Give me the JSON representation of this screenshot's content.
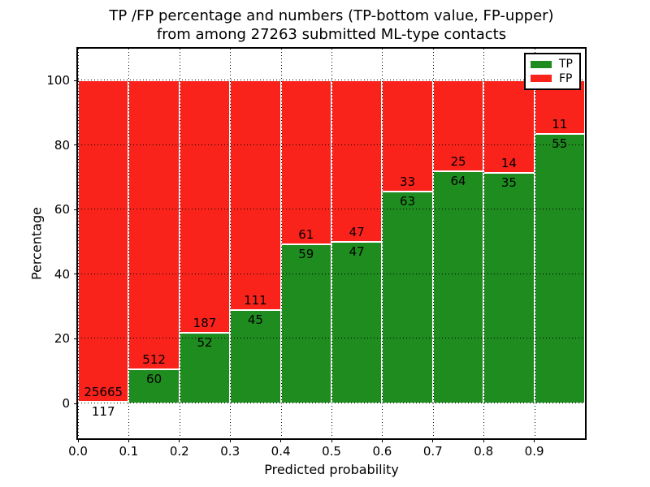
{
  "chart_data": {
    "type": "bar",
    "stacked": true,
    "percentage": true,
    "title_line1": "TP /FP percentage and numbers (TP-bottom value, FP-upper)",
    "title_line2": "from among 27263 submitted ML-type contacts",
    "xlabel": "Predicted probability",
    "ylabel": "Percentage",
    "x_tick_labels": [
      "0.0",
      "0.1",
      "0.2",
      "0.3",
      "0.4",
      "0.5",
      "0.6",
      "0.7",
      "0.8",
      "0.9"
    ],
    "y_ticks": [
      0,
      20,
      40,
      60,
      80,
      100
    ],
    "y_tick_labels": [
      "0",
      "20",
      "40",
      "60",
      "80",
      "100"
    ],
    "xlim": [
      0.0,
      1.0
    ],
    "ylim": [
      -10.8,
      109.8
    ],
    "bin_width": 0.1,
    "total_contacts": 27263,
    "series": [
      {
        "name": "TP",
        "color": "#1e8c1e",
        "values": [
          117,
          60,
          52,
          45,
          59,
          47,
          63,
          64,
          35,
          55
        ]
      },
      {
        "name": "FP",
        "color": "#fa231c",
        "values": [
          25665,
          512,
          187,
          111,
          61,
          47,
          33,
          25,
          14,
          11
        ]
      }
    ],
    "tp_percent_per_bin": [
      0.45,
      10.49,
      21.76,
      28.85,
      49.17,
      50.0,
      65.63,
      71.91,
      71.43,
      83.33
    ],
    "legend": {
      "position": "upper right",
      "entries": [
        {
          "label": "TP",
          "color": "#1e8c1e"
        },
        {
          "label": "FP",
          "color": "#fa231c"
        }
      ]
    },
    "grid_style": "dotted",
    "grid_color": "#000000",
    "background_color": "#ffffff"
  }
}
